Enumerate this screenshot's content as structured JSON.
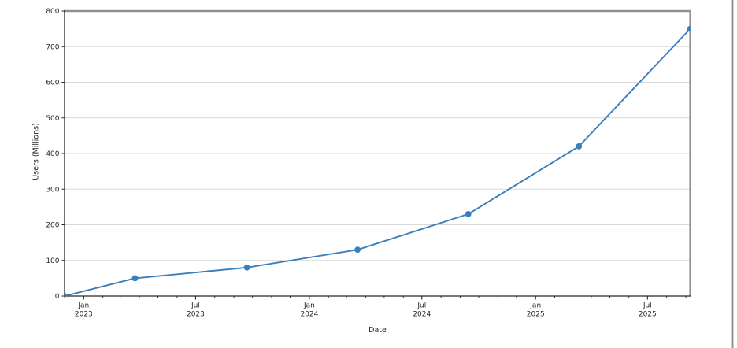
{
  "figure": {
    "background_color": "#ffffff",
    "right_edge_border_color": "#8c8c8c"
  },
  "chart_data": {
    "type": "line",
    "title": "",
    "xlabel": "Date",
    "ylabel": "Users (Millions)",
    "x": [
      "2022-12-01",
      "2023-03-25",
      "2023-09-22",
      "2024-03-19",
      "2024-09-14",
      "2025-03-12",
      "2025-09-08"
    ],
    "series": [
      {
        "name": "Users (Millions)",
        "values": [
          0,
          50,
          80,
          130,
          230,
          420,
          750
        ]
      }
    ],
    "ylim": [
      0,
      800
    ],
    "ytick_step": 100,
    "ytick_labels": [
      "0",
      "100",
      "200",
      "300",
      "400",
      "500",
      "600",
      "700",
      "800"
    ],
    "xtick_major_labels": [
      [
        "Jan",
        "2023"
      ],
      [
        "Jul",
        "2023"
      ],
      [
        "Jan",
        "2024"
      ],
      [
        "Jul",
        "2024"
      ],
      [
        "Jan",
        "2025"
      ],
      [
        "Jul",
        "2025"
      ]
    ],
    "xtick_minor": "monthly",
    "grid": "horizontal-only",
    "legend": "none",
    "line_color": "#3a7ebd",
    "marker": "circle",
    "marker_color": "#3a7ebd",
    "gridline_color": "#d9d9d9",
    "tick_label_color": "#262626",
    "spine_color": "#262626",
    "outer_spine_color": "#919191"
  }
}
